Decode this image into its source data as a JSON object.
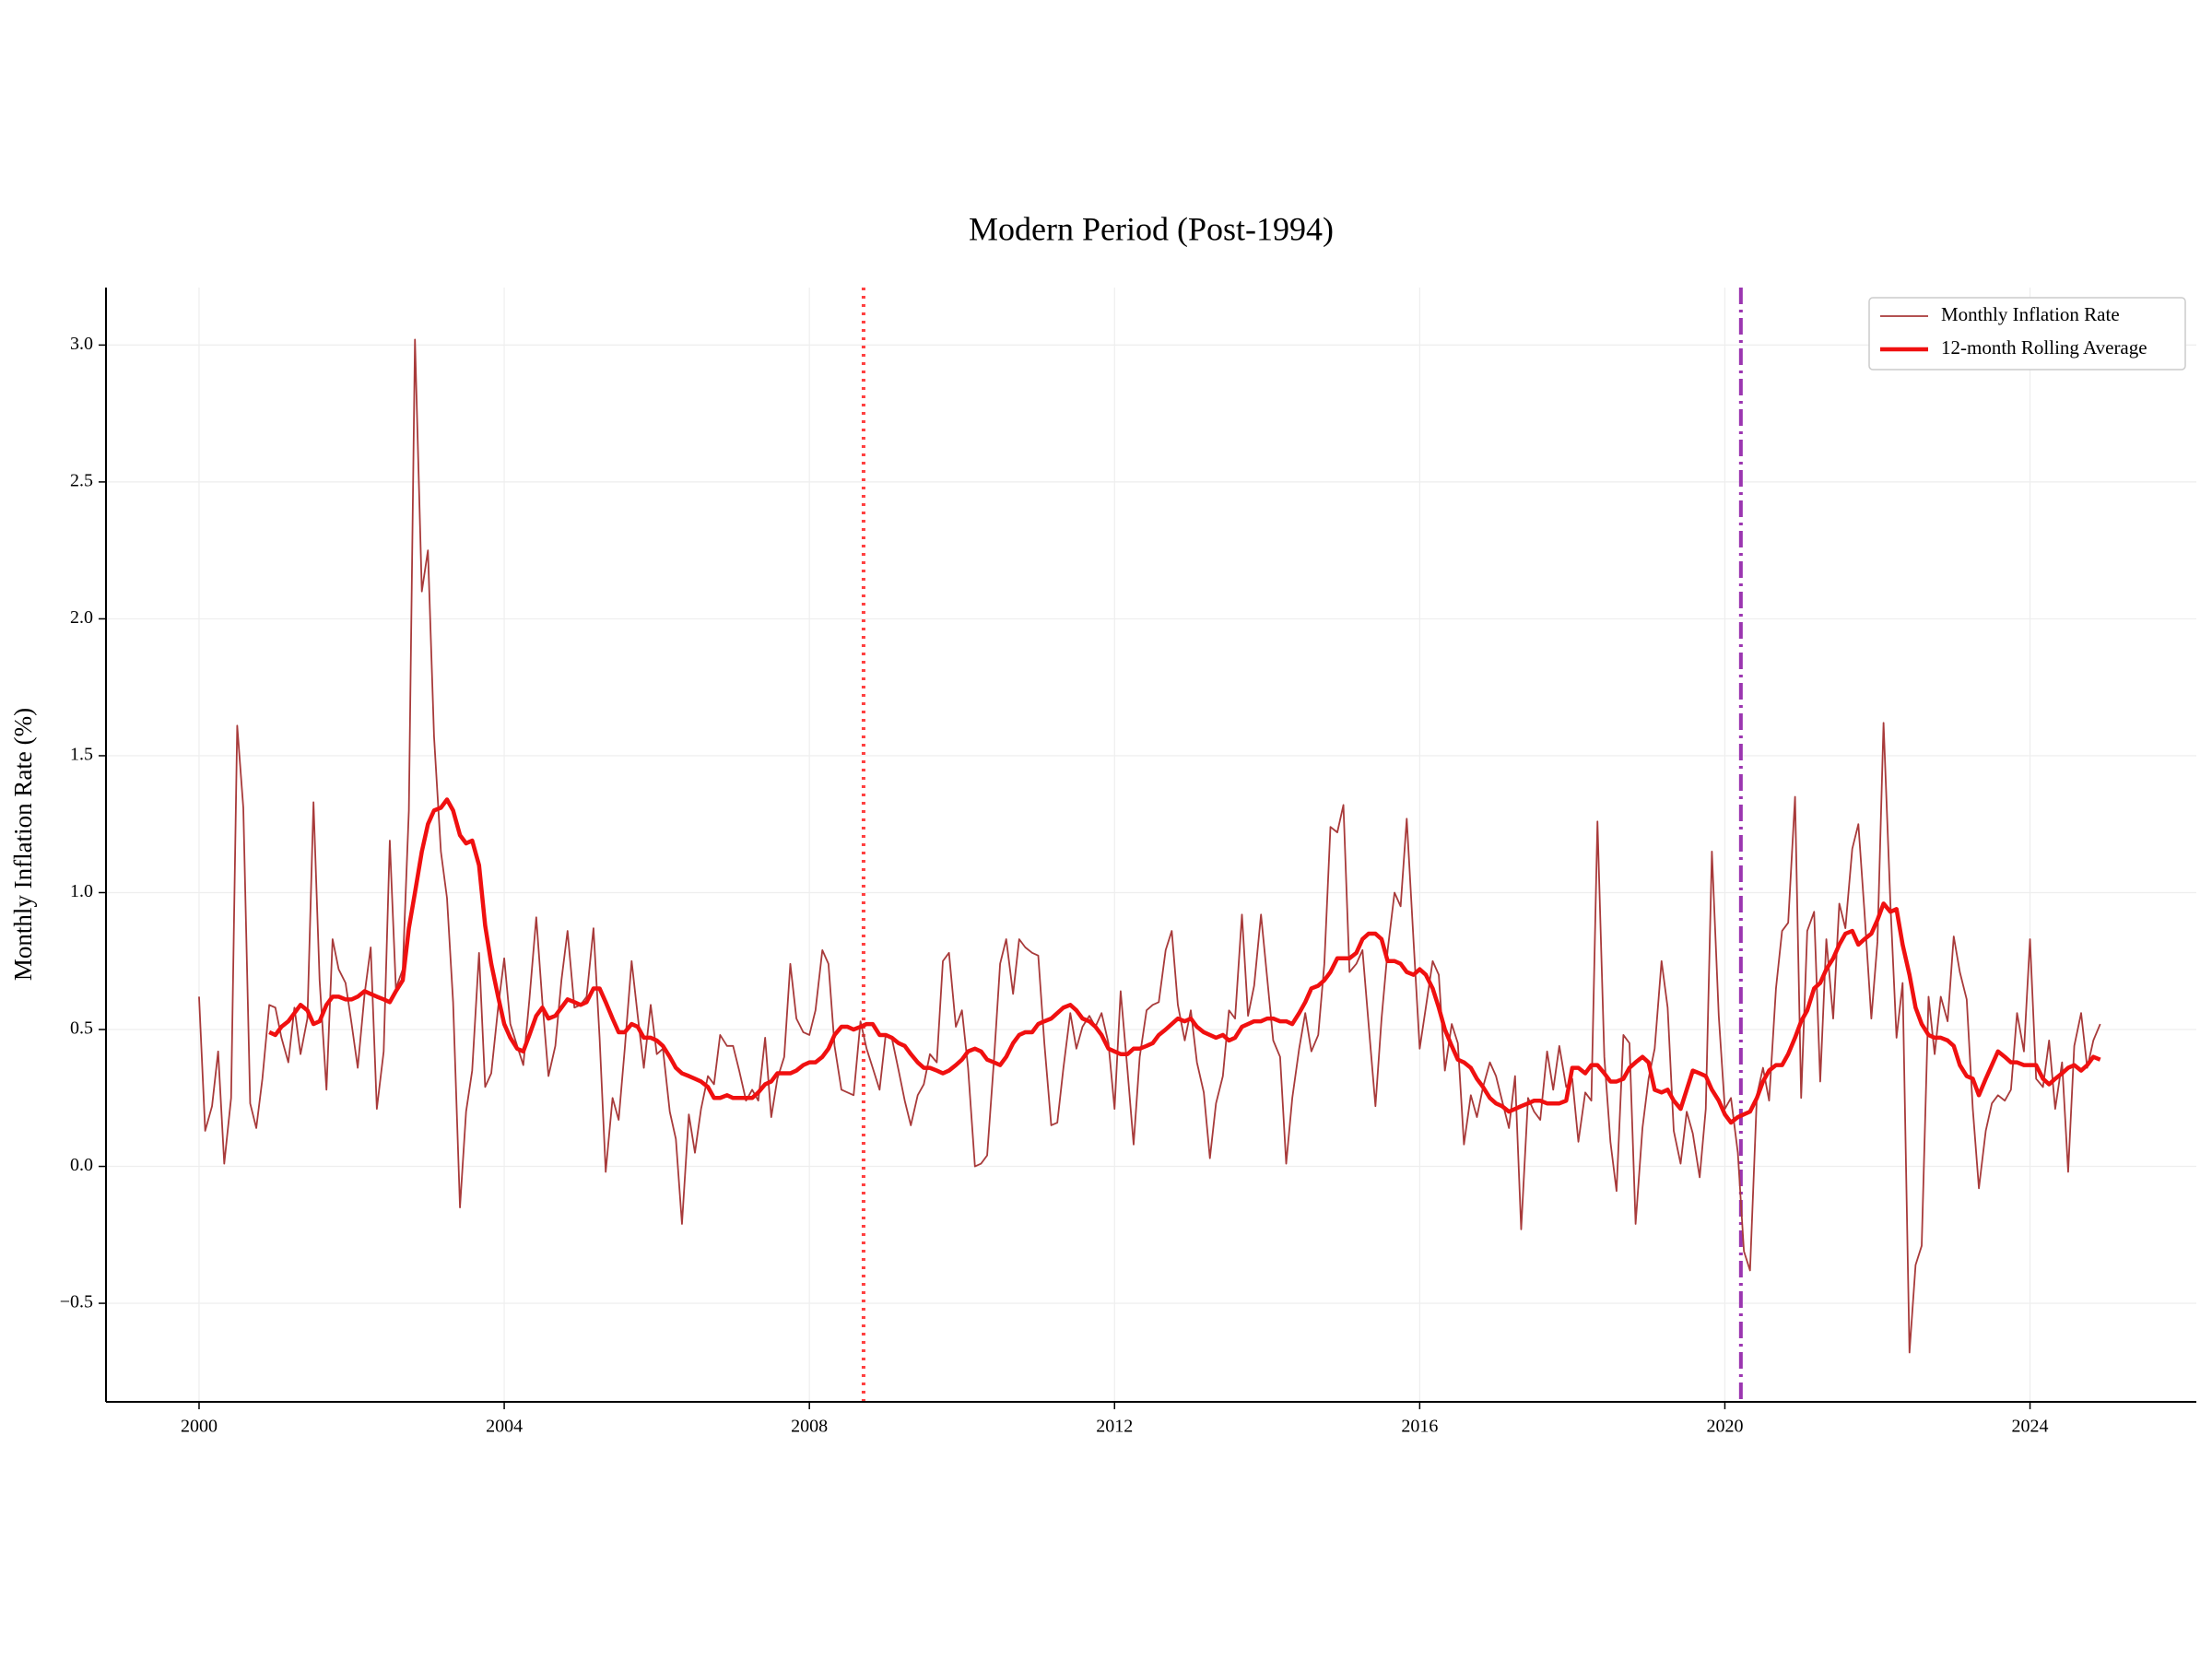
{
  "chart_data": {
    "type": "line",
    "title": "Modern Period (Post-1994)",
    "y_label": "Monthly Inflation Rate (%)",
    "x": [
      2000,
      2000.08,
      2000.17,
      2000.25,
      2000.33,
      2000.42,
      2000.5,
      2000.58,
      2000.67,
      2000.75,
      2000.83,
      2000.92,
      2001,
      2001.08,
      2001.17,
      2001.25,
      2001.33,
      2001.42,
      2001.5,
      2001.58,
      2001.67,
      2001.75,
      2001.83,
      2001.92,
      2002,
      2002.08,
      2002.17,
      2002.25,
      2002.33,
      2002.42,
      2002.5,
      2002.58,
      2002.67,
      2002.75,
      2002.83,
      2002.92,
      2003,
      2003.08,
      2003.17,
      2003.25,
      2003.33,
      2003.42,
      2003.5,
      2003.58,
      2003.67,
      2003.75,
      2003.83,
      2003.92,
      2004,
      2004.08,
      2004.17,
      2004.25,
      2004.33,
      2004.42,
      2004.5,
      2004.58,
      2004.67,
      2004.75,
      2004.83,
      2004.92,
      2005,
      2005.08,
      2005.17,
      2005.25,
      2005.33,
      2005.42,
      2005.5,
      2005.58,
      2005.67,
      2005.75,
      2005.83,
      2005.92,
      2006,
      2006.08,
      2006.17,
      2006.25,
      2006.33,
      2006.42,
      2006.5,
      2006.58,
      2006.67,
      2006.75,
      2006.83,
      2006.92,
      2007,
      2007.08,
      2007.17,
      2007.25,
      2007.33,
      2007.42,
      2007.5,
      2007.58,
      2007.67,
      2007.75,
      2007.83,
      2007.92,
      2008,
      2008.08,
      2008.17,
      2008.25,
      2008.33,
      2008.42,
      2008.5,
      2008.58,
      2008.67,
      2008.75,
      2008.83,
      2008.92,
      2009,
      2009.08,
      2009.17,
      2009.25,
      2009.33,
      2009.42,
      2009.5,
      2009.58,
      2009.67,
      2009.75,
      2009.83,
      2009.92,
      2010,
      2010.08,
      2010.17,
      2010.25,
      2010.33,
      2010.42,
      2010.5,
      2010.58,
      2010.67,
      2010.75,
      2010.83,
      2010.92,
      2011,
      2011.08,
      2011.17,
      2011.25,
      2011.33,
      2011.42,
      2011.5,
      2011.58,
      2011.67,
      2011.75,
      2011.83,
      2011.92,
      2012,
      2012.08,
      2012.17,
      2012.25,
      2012.33,
      2012.42,
      2012.5,
      2012.58,
      2012.67,
      2012.75,
      2012.83,
      2012.92,
      2013,
      2013.08,
      2013.17,
      2013.25,
      2013.33,
      2013.42,
      2013.5,
      2013.58,
      2013.67,
      2013.75,
      2013.83,
      2013.92,
      2014,
      2014.08,
      2014.17,
      2014.25,
      2014.33,
      2014.42,
      2014.5,
      2014.58,
      2014.67,
      2014.75,
      2014.83,
      2014.92,
      2015,
      2015.08,
      2015.17,
      2015.25,
      2015.33,
      2015.42,
      2015.5,
      2015.58,
      2015.67,
      2015.75,
      2015.83,
      2015.92,
      2016,
      2016.08,
      2016.17,
      2016.25,
      2016.33,
      2016.42,
      2016.5,
      2016.58,
      2016.67,
      2016.75,
      2016.83,
      2016.92,
      2017,
      2017.08,
      2017.17,
      2017.25,
      2017.33,
      2017.42,
      2017.5,
      2017.58,
      2017.67,
      2017.75,
      2017.83,
      2017.92,
      2018,
      2018.08,
      2018.17,
      2018.25,
      2018.33,
      2018.42,
      2018.5,
      2018.58,
      2018.67,
      2018.75,
      2018.83,
      2018.92,
      2019,
      2019.08,
      2019.17,
      2019.25,
      2019.33,
      2019.42,
      2019.5,
      2019.58,
      2019.67,
      2019.75,
      2019.83,
      2019.92,
      2020,
      2020.08,
      2020.17,
      2020.25,
      2020.33,
      2020.42,
      2020.5,
      2020.58,
      2020.67,
      2020.75,
      2020.83,
      2020.92,
      2021,
      2021.08,
      2021.17,
      2021.25,
      2021.33,
      2021.42,
      2021.5,
      2021.58,
      2021.67,
      2021.75,
      2021.83,
      2021.92,
      2022,
      2022.08,
      2022.17,
      2022.25,
      2022.33,
      2022.42,
      2022.5,
      2022.58,
      2022.67,
      2022.75,
      2022.83,
      2022.92,
      2023,
      2023.08,
      2023.17,
      2023.25,
      2023.33,
      2023.42,
      2023.5,
      2023.58,
      2023.67,
      2023.75,
      2023.83,
      2023.92,
      2024,
      2024.08,
      2024.17,
      2024.25,
      2024.33,
      2024.42,
      2024.5,
      2024.58,
      2024.67,
      2024.75,
      2024.83,
      2024.92
    ],
    "series": [
      {
        "name": "Monthly Inflation Rate",
        "color": "#a83a3a",
        "width": 1.8,
        "values": [
          0.62,
          0.13,
          0.22,
          0.42,
          0.01,
          0.25,
          1.61,
          1.31,
          0.23,
          0.14,
          0.32,
          0.59,
          0.58,
          0.47,
          0.38,
          0.58,
          0.41,
          0.54,
          1.33,
          0.68,
          0.28,
          0.83,
          0.72,
          0.67,
          0.52,
          0.36,
          0.63,
          0.8,
          0.21,
          0.42,
          1.19,
          0.65,
          0.72,
          1.3,
          3.02,
          2.1,
          2.25,
          1.57,
          1.15,
          0.98,
          0.6,
          -0.15,
          0.2,
          0.35,
          0.78,
          0.29,
          0.34,
          0.58,
          0.76,
          0.52,
          0.44,
          0.37,
          0.61,
          0.91,
          0.6,
          0.33,
          0.44,
          0.68,
          0.86,
          0.58,
          0.59,
          0.62,
          0.87,
          0.47,
          -0.02,
          0.25,
          0.17,
          0.43,
          0.75,
          0.55,
          0.36,
          0.59,
          0.41,
          0.43,
          0.2,
          0.1,
          -0.21,
          0.19,
          0.05,
          0.21,
          0.33,
          0.3,
          0.48,
          0.44,
          0.44,
          0.35,
          0.24,
          0.28,
          0.24,
          0.47,
          0.18,
          0.32,
          0.4,
          0.74,
          0.54,
          0.49,
          0.48,
          0.57,
          0.79,
          0.74,
          0.44,
          0.28,
          0.27,
          0.26,
          0.53,
          0.43,
          0.36,
          0.28,
          0.48,
          0.47,
          0.35,
          0.24,
          0.15,
          0.26,
          0.3,
          0.41,
          0.38,
          0.75,
          0.78,
          0.51,
          0.57,
          0.36,
          0,
          0.01,
          0.04,
          0.39,
          0.74,
          0.83,
          0.63,
          0.83,
          0.8,
          0.78,
          0.77,
          0.45,
          0.15,
          0.16,
          0.36,
          0.56,
          0.43,
          0.51,
          0.55,
          0.51,
          0.56,
          0.45,
          0.21,
          0.64,
          0.35,
          0.08,
          0.4,
          0.57,
          0.59,
          0.6,
          0.79,
          0.86,
          0.59,
          0.46,
          0.57,
          0.38,
          0.27,
          0.03,
          0.23,
          0.33,
          0.57,
          0.54,
          0.92,
          0.55,
          0.66,
          0.92,
          0.69,
          0.46,
          0.4,
          0.01,
          0.25,
          0.43,
          0.56,
          0.42,
          0.48,
          0.74,
          1.24,
          1.22,
          1.32,
          0.71,
          0.74,
          0.79,
          0.52,
          0.22,
          0.54,
          0.79,
          1,
          0.95,
          1.27,
          0.82,
          0.43,
          0.58,
          0.75,
          0.7,
          0.35,
          0.52,
          0.45,
          0.08,
          0.26,
          0.18,
          0.29,
          0.38,
          0.33,
          0.24,
          0.14,
          0.33,
          -0.23,
          0.25,
          0.2,
          0.17,
          0.42,
          0.28,
          0.44,
          0.29,
          0.32,
          0.09,
          0.27,
          0.24,
          1.26,
          0.4,
          0.09,
          -0.09,
          0.48,
          0.45,
          -0.21,
          0.14,
          0.32,
          0.43,
          0.75,
          0.58,
          0.13,
          0.01,
          0.2,
          0.12,
          -0.04,
          0.21,
          1.15,
          0.55,
          0.21,
          0.25,
          0.05,
          -0.31,
          -0.38,
          0.26,
          0.36,
          0.24,
          0.65,
          0.86,
          0.89,
          1.35,
          0.25,
          0.86,
          0.93,
          0.31,
          0.83,
          0.54,
          0.96,
          0.87,
          1.16,
          1.25,
          0.93,
          0.54,
          0.82,
          1.62,
          0.96,
          0.47,
          0.67,
          -0.68,
          -0.36,
          -0.29,
          0.62,
          0.41,
          0.62,
          0.53,
          0.84,
          0.71,
          0.61,
          0.21,
          -0.08,
          0.13,
          0.23,
          0.26,
          0.24,
          0.28,
          0.56,
          0.42,
          0.83,
          0.32,
          0.29,
          0.46,
          0.21,
          0.38,
          -0.02,
          0.44,
          0.56,
          0.36,
          0.46,
          0.52
        ]
      },
      {
        "name": "12-month Rolling Average",
        "color": "#f01010",
        "width": 4.5,
        "values": [
          null,
          null,
          null,
          null,
          null,
          null,
          null,
          null,
          null,
          null,
          null,
          0.49,
          0.48,
          0.51,
          0.53,
          0.56,
          0.59,
          0.57,
          0.52,
          0.53,
          0.59,
          0.62,
          0.62,
          0.61,
          0.61,
          0.62,
          0.64,
          0.63,
          0.62,
          0.61,
          0.6,
          0.64,
          0.68,
          0.87,
          1,
          1.15,
          1.25,
          1.3,
          1.31,
          1.34,
          1.3,
          1.21,
          1.18,
          1.19,
          1.1,
          0.88,
          0.74,
          0.62,
          0.52,
          0.47,
          0.43,
          0.42,
          0.48,
          0.55,
          0.58,
          0.54,
          0.55,
          0.58,
          0.61,
          0.6,
          0.59,
          0.6,
          0.65,
          0.65,
          0.6,
          0.54,
          0.49,
          0.49,
          0.52,
          0.51,
          0.47,
          0.47,
          0.46,
          0.44,
          0.4,
          0.36,
          0.34,
          0.33,
          0.32,
          0.31,
          0.29,
          0.25,
          0.25,
          0.26,
          0.25,
          0.25,
          0.25,
          0.25,
          0.27,
          0.3,
          0.31,
          0.34,
          0.34,
          0.34,
          0.35,
          0.37,
          0.38,
          0.38,
          0.4,
          0.43,
          0.48,
          0.51,
          0.51,
          0.5,
          0.51,
          0.52,
          0.52,
          0.48,
          0.48,
          0.47,
          0.45,
          0.44,
          0.41,
          0.38,
          0.36,
          0.36,
          0.35,
          0.34,
          0.35,
          0.37,
          0.39,
          0.42,
          0.43,
          0.42,
          0.39,
          0.38,
          0.37,
          0.4,
          0.45,
          0.48,
          0.49,
          0.49,
          0.52,
          0.53,
          0.54,
          0.56,
          0.58,
          0.59,
          0.57,
          0.54,
          0.53,
          0.51,
          0.48,
          0.43,
          0.42,
          0.41,
          0.41,
          0.43,
          0.43,
          0.44,
          0.45,
          0.48,
          0.5,
          0.52,
          0.54,
          0.53,
          0.54,
          0.51,
          0.49,
          0.48,
          0.47,
          0.48,
          0.46,
          0.47,
          0.51,
          0.52,
          0.53,
          0.53,
          0.54,
          0.54,
          0.53,
          0.53,
          0.52,
          0.56,
          0.6,
          0.65,
          0.66,
          0.68,
          0.71,
          0.76,
          0.76,
          0.76,
          0.78,
          0.83,
          0.85,
          0.85,
          0.83,
          0.75,
          0.75,
          0.74,
          0.71,
          0.7,
          0.72,
          0.7,
          0.65,
          0.58,
          0.5,
          0.44,
          0.39,
          0.38,
          0.36,
          0.32,
          0.29,
          0.25,
          0.23,
          0.22,
          0.2,
          0.21,
          0.22,
          0.23,
          0.24,
          0.24,
          0.23,
          0.23,
          0.23,
          0.24,
          0.36,
          0.36,
          0.34,
          0.37,
          0.37,
          0.34,
          0.31,
          0.31,
          0.32,
          0.36,
          0.38,
          0.4,
          0.38,
          0.28,
          0.27,
          0.28,
          0.24,
          0.21,
          0.28,
          0.35,
          0.34,
          0.33,
          0.28,
          0.24,
          0.19,
          0.16,
          0.18,
          0.19,
          0.2,
          0.25,
          0.31,
          0.35,
          0.37,
          0.37,
          0.41,
          0.47,
          0.53,
          0.57,
          0.65,
          0.67,
          0.72,
          0.76,
          0.81,
          0.85,
          0.86,
          0.81,
          0.83,
          0.85,
          0.9,
          0.96,
          0.93,
          0.94,
          0.81,
          0.7,
          0.58,
          0.52,
          0.48,
          0.47,
          0.47,
          0.46,
          0.44,
          0.37,
          0.33,
          0.32,
          0.26,
          0.32,
          0.37,
          0.42,
          0.4,
          0.38,
          0.38,
          0.37,
          0.37,
          0.37,
          0.32,
          0.3,
          0.32,
          0.34,
          0.36,
          0.37,
          0.35,
          0.37,
          0.4,
          0.39
        ]
      }
    ],
    "vlines": [
      {
        "x": 2008.71,
        "color": "#ff4040",
        "style": "dotted"
      },
      {
        "x": 2020.21,
        "color": "#9b35b0",
        "style": "dashdot"
      }
    ],
    "xlim": [
      1998.78,
      2026.18
    ],
    "xticks": [
      2000,
      2004,
      2008,
      2012,
      2016,
      2020,
      2024
    ],
    "ylim": [
      -0.86,
      3.21
    ],
    "yticks": [
      {
        "value": -0.5,
        "label": "−0.5"
      },
      {
        "value": 0,
        "label": "0.0"
      },
      0.5,
      {
        "value": 1,
        "label": "1.0"
      },
      1.5,
      {
        "value": 2,
        "label": "2.0"
      },
      2.5,
      {
        "value": 3,
        "label": "3.0"
      }
    ],
    "grid": true,
    "legend": "upper right"
  }
}
